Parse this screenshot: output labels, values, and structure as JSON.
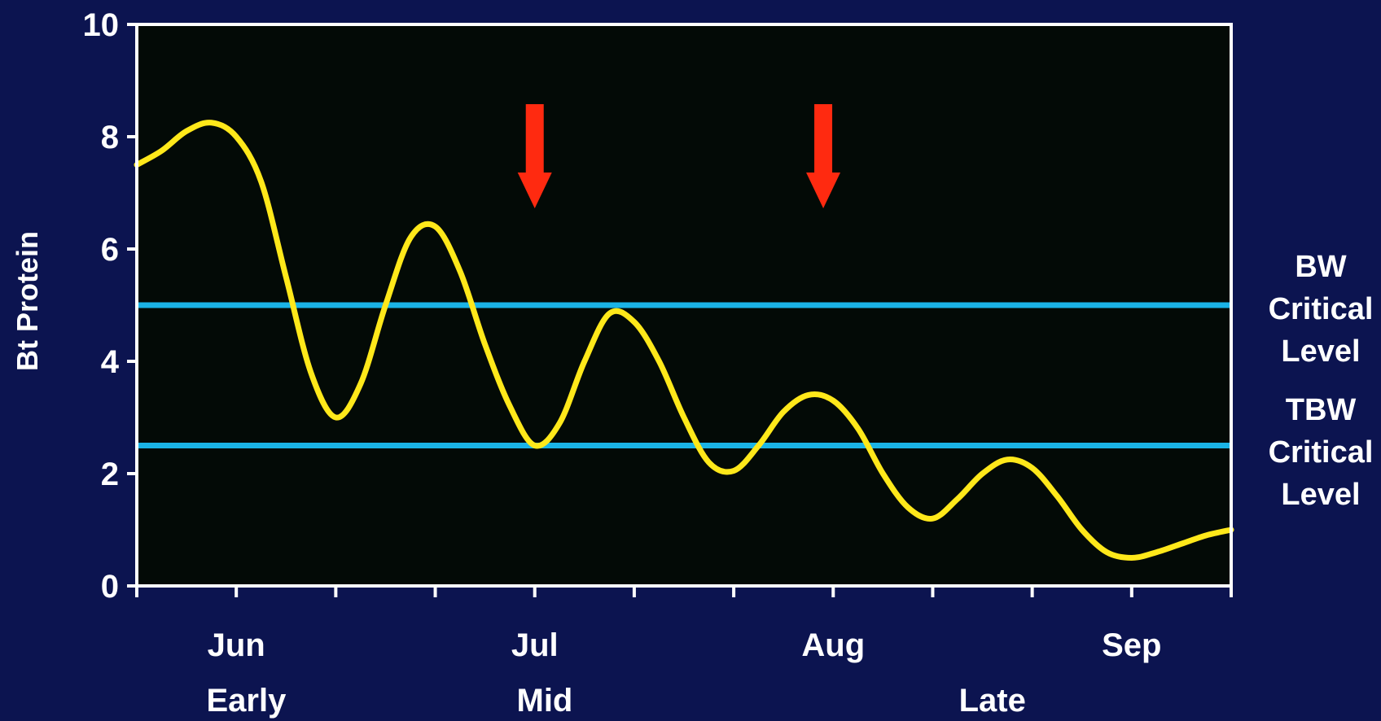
{
  "chart_data": {
    "type": "line",
    "title": "",
    "xlabel": "",
    "ylabel": "Bt Protein",
    "ylim": [
      0,
      10
    ],
    "xlim": [
      0,
      11
    ],
    "yticks": [
      "0",
      "2",
      "4",
      "6",
      "8",
      "10"
    ],
    "x_ticks_count": 12,
    "months": [
      {
        "label": "Jun",
        "x": 1
      },
      {
        "label": "Jul",
        "x": 4
      },
      {
        "label": "Aug",
        "x": 7
      },
      {
        "label": "Sep",
        "x": 10
      }
    ],
    "periods": [
      {
        "label": "Early",
        "x": 1.1
      },
      {
        "label": "Mid",
        "x": 4.1
      },
      {
        "label": "Late",
        "x": 8.6
      }
    ],
    "series": [
      {
        "color": "#ffe81a",
        "points": [
          [
            0,
            7.5
          ],
          [
            0.25,
            7.75
          ],
          [
            0.5,
            8.1
          ],
          [
            0.75,
            8.25
          ],
          [
            1.0,
            8.0
          ],
          [
            1.25,
            7.2
          ],
          [
            1.5,
            5.5
          ],
          [
            1.75,
            3.8
          ],
          [
            2.0,
            3.0
          ],
          [
            2.25,
            3.6
          ],
          [
            2.5,
            5.0
          ],
          [
            2.75,
            6.2
          ],
          [
            3.0,
            6.4
          ],
          [
            3.25,
            5.6
          ],
          [
            3.5,
            4.3
          ],
          [
            3.75,
            3.2
          ],
          [
            4.0,
            2.5
          ],
          [
            4.25,
            2.9
          ],
          [
            4.5,
            4.0
          ],
          [
            4.75,
            4.85
          ],
          [
            5.0,
            4.7
          ],
          [
            5.25,
            4.0
          ],
          [
            5.5,
            3.0
          ],
          [
            5.75,
            2.2
          ],
          [
            6.0,
            2.05
          ],
          [
            6.25,
            2.5
          ],
          [
            6.5,
            3.1
          ],
          [
            6.75,
            3.4
          ],
          [
            7.0,
            3.3
          ],
          [
            7.25,
            2.8
          ],
          [
            7.5,
            2.0
          ],
          [
            7.75,
            1.4
          ],
          [
            8.0,
            1.2
          ],
          [
            8.25,
            1.55
          ],
          [
            8.5,
            2.0
          ],
          [
            8.75,
            2.25
          ],
          [
            9.0,
            2.1
          ],
          [
            9.25,
            1.6
          ],
          [
            9.5,
            1.0
          ],
          [
            9.75,
            0.6
          ],
          [
            10.0,
            0.5
          ],
          [
            10.25,
            0.6
          ],
          [
            10.5,
            0.75
          ],
          [
            10.75,
            0.9
          ],
          [
            11.0,
            1.0
          ]
        ]
      }
    ],
    "reference_lines": [
      {
        "value": 5.0,
        "label_lines": [
          "BW",
          "Critical",
          "Level"
        ],
        "color": "#1ab3e6"
      },
      {
        "value": 2.5,
        "label_lines": [
          "TBW",
          "Critical",
          "Level"
        ],
        "color": "#1ab3e6"
      }
    ],
    "annotations": [
      {
        "type": "arrow",
        "x": 4.0,
        "color": "#ff2a10"
      },
      {
        "type": "arrow",
        "x": 6.9,
        "color": "#ff2a10"
      }
    ],
    "plot_background": "#030a06",
    "page_background": "#0c1450",
    "axis_color": "#ffffff",
    "grid": false
  }
}
